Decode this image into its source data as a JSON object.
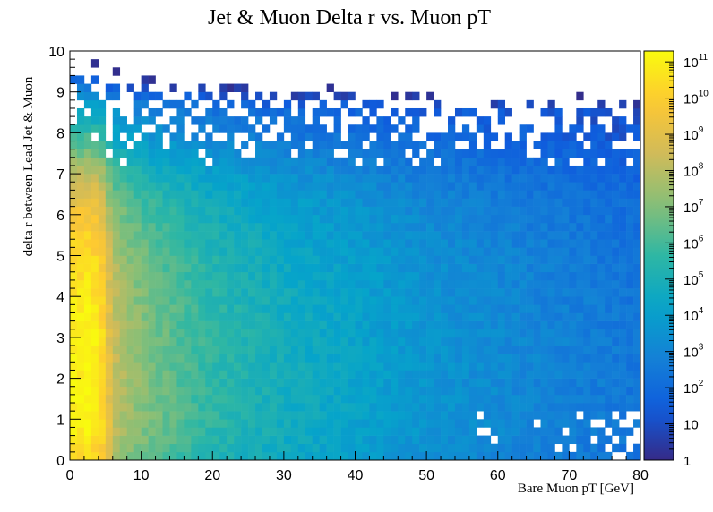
{
  "chart_data": {
    "type": "heatmap",
    "title": "Jet & Muon Delta r vs. Muon pT",
    "xlabel": "Bare Muon pT [GeV]",
    "ylabel": "delta r between Lead Jet & Muon",
    "xlim": [
      0,
      80
    ],
    "ylim": [
      0,
      10
    ],
    "x_ticks": [
      0,
      10,
      20,
      30,
      40,
      50,
      60,
      70,
      80
    ],
    "y_ticks": [
      0,
      1,
      2,
      3,
      4,
      5,
      6,
      7,
      8,
      9,
      10
    ],
    "bins": {
      "x": 80,
      "y": 50,
      "x_width": 1,
      "y_width": 0.2
    },
    "z_scale": "log",
    "z_range": [
      1,
      200000000000
    ],
    "colorbar_ticks": [
      {
        "value": 1,
        "base": "1",
        "exp": ""
      },
      {
        "value": 10,
        "base": "10",
        "exp": ""
      },
      {
        "value": 100,
        "base": "10",
        "exp": "2"
      },
      {
        "value": 1000,
        "base": "10",
        "exp": "3"
      },
      {
        "value": 10000,
        "base": "10",
        "exp": "4"
      },
      {
        "value": 100000,
        "base": "10",
        "exp": "5"
      },
      {
        "value": 1000000,
        "base": "10",
        "exp": "6"
      },
      {
        "value": 10000000,
        "base": "10",
        "exp": "7"
      },
      {
        "value": 100000000,
        "base": "10",
        "exp": "8"
      },
      {
        "value": 1000000000,
        "base": "10",
        "exp": "9"
      },
      {
        "value": 10000000000,
        "base": "10",
        "exp": "10"
      },
      {
        "value": 100000000000,
        "base": "10",
        "exp": "11"
      }
    ],
    "palette": [
      "#352a87",
      "#0f5cdd",
      "#1481d6",
      "#06a4ca",
      "#2eb7a4",
      "#87bf77",
      "#d1bb59",
      "#fec832",
      "#f9fb0e"
    ],
    "density_model": {
      "description": "approximate log10(counts) per bin read from colour",
      "peak_log10": 11.3,
      "pt_decay": [
        [
          0.5,
          11.0
        ],
        [
          1.5,
          11.0
        ],
        [
          2.5,
          11.2
        ],
        [
          3.5,
          10.9
        ],
        [
          4.5,
          10.4
        ],
        [
          5.5,
          9.0
        ],
        [
          6.5,
          8.2
        ],
        [
          8,
          7.6
        ],
        [
          10,
          7.1
        ],
        [
          15,
          6.3
        ],
        [
          20,
          5.6
        ],
        [
          30,
          4.8
        ],
        [
          40,
          4.2
        ],
        [
          50,
          3.6
        ],
        [
          60,
          3.2
        ],
        [
          70,
          2.8
        ],
        [
          80,
          2.4
        ]
      ],
      "dr_profile": [
        [
          0.1,
          0.9
        ],
        [
          0.5,
          0.95
        ],
        [
          1.0,
          1.0
        ],
        [
          2.0,
          1.0
        ],
        [
          3.0,
          1.0
        ],
        [
          4.0,
          0.96
        ],
        [
          5.0,
          0.9
        ],
        [
          6.0,
          0.78
        ],
        [
          6.6,
          0.66
        ],
        [
          7.0,
          0.55
        ],
        [
          7.4,
          0.4
        ],
        [
          7.8,
          0.25
        ],
        [
          8.2,
          0.12
        ],
        [
          8.6,
          0.0
        ],
        [
          9.0,
          -0.25
        ],
        [
          9.6,
          -0.6
        ],
        [
          10.0,
          -0.9
        ]
      ],
      "seed": 12345
    }
  }
}
